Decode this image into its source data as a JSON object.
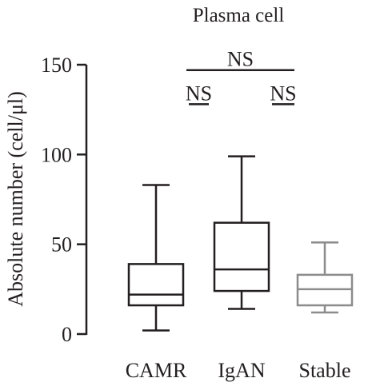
{
  "chart_data": {
    "type": "box",
    "title": "Plasma cell",
    "xlabel": "",
    "ylabel": "Absolute number (cell/μl)",
    "ylim": [
      0,
      150
    ],
    "yticks": [
      0,
      50,
      100,
      150
    ],
    "grid": false,
    "categories": [
      "CAMR",
      "IgAN",
      "Stable"
    ],
    "boxes": [
      {
        "category": "CAMR",
        "min": 2,
        "q1": 16,
        "median": 22,
        "q3": 39,
        "max": 83,
        "color": "#231f20"
      },
      {
        "category": "IgAN",
        "min": 14,
        "q1": 24,
        "median": 36,
        "q3": 62,
        "max": 99,
        "color": "#231f20"
      },
      {
        "category": "Stable",
        "min": 12,
        "q1": 16,
        "median": 25,
        "q3": 33,
        "max": 51,
        "color": "#8c8c8c"
      }
    ],
    "comparisons": [
      {
        "from": "CAMR",
        "to": "IgAN",
        "label": "NS",
        "level": 128
      },
      {
        "from": "IgAN",
        "to": "Stable",
        "label": "NS",
        "level": 128
      },
      {
        "from": "CAMR",
        "to": "Stable",
        "label": "NS",
        "level": 147
      }
    ]
  }
}
